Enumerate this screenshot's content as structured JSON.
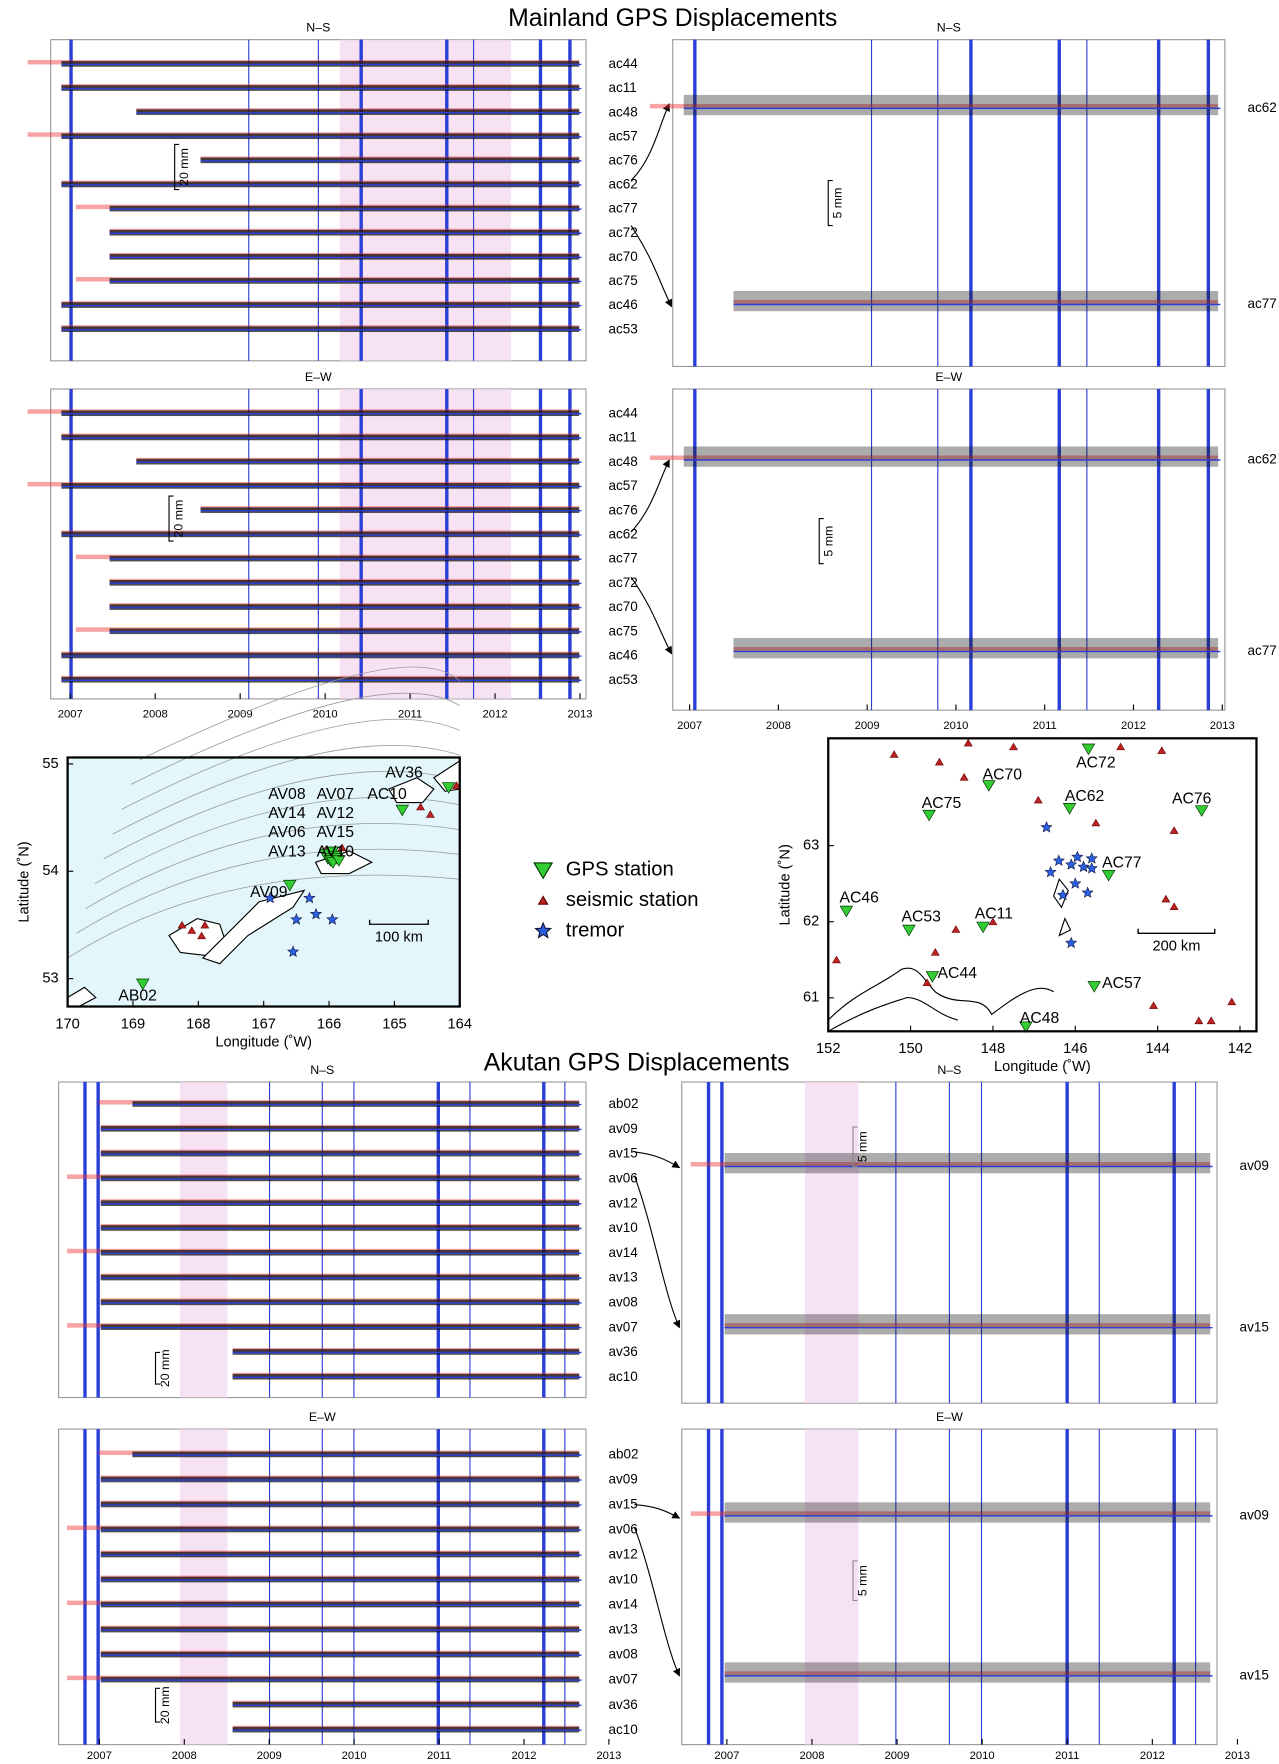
{
  "mainland": {
    "title": "Mainland GPS Displacements",
    "left": {
      "stations": [
        "ac44",
        "ac11",
        "ac48",
        "ac57",
        "ac76",
        "ac62",
        "ac77",
        "ac72",
        "ac70",
        "ac75",
        "ac46",
        "ac53"
      ],
      "panels": [
        {
          "title": "N–S",
          "scale": "20 mm"
        },
        {
          "title": "E–W",
          "scale": "20 mm"
        }
      ],
      "xlim": [
        2006.77,
        2013.07
      ]
    },
    "right": {
      "stations": [
        "ac62",
        "ac77"
      ],
      "panels": [
        {
          "title": "N–S",
          "scale": "5 mm"
        },
        {
          "title": "E–W",
          "scale": "5 mm"
        }
      ],
      "xlim": [
        2006.81,
        2013.03
      ]
    },
    "xticks": [
      2007,
      2008,
      2009,
      2010,
      2011,
      2012,
      2013
    ]
  },
  "maps": {
    "akutan": {
      "xlabel": "Longitude (˚W)",
      "ylabel": "Latitude (˚N)",
      "xlim": [
        170,
        164
      ],
      "ylim": [
        52.74,
        55.06
      ],
      "xticks": [
        170,
        169,
        168,
        167,
        166,
        165,
        164
      ],
      "yticks": [
        53,
        54,
        55
      ],
      "scalebar": "100 km",
      "gps": [
        {
          "label": "AV08",
          "lon": 166.05,
          "lat": 54.16
        },
        {
          "label": "AV07",
          "lon": 165.95,
          "lat": 54.18
        },
        {
          "label": "AV14",
          "lon": 166.02,
          "lat": 54.12
        },
        {
          "label": "AV12",
          "lon": 165.92,
          "lat": 54.14
        },
        {
          "label": "AV06",
          "lon": 165.98,
          "lat": 54.1
        },
        {
          "label": "AV15",
          "lon": 165.88,
          "lat": 54.12
        },
        {
          "label": "AV13",
          "lon": 165.94,
          "lat": 54.08
        },
        {
          "label": "AV10",
          "lon": 165.85,
          "lat": 54.1
        },
        {
          "label": "AV09",
          "lon": 166.6,
          "lat": 53.87
        },
        {
          "label": "AB02",
          "lon": 168.85,
          "lat": 52.95
        },
        {
          "label": "AC10",
          "lon": 164.88,
          "lat": 54.57
        },
        {
          "label": "AV36",
          "lon": 164.17,
          "lat": 54.78
        }
      ],
      "seismic": [
        {
          "lon": 168.1,
          "lat": 53.45
        },
        {
          "lon": 167.9,
          "lat": 53.5
        },
        {
          "lon": 168.25,
          "lat": 53.5
        },
        {
          "lon": 167.95,
          "lat": 53.4
        },
        {
          "lon": 166.05,
          "lat": 54.2
        },
        {
          "lon": 164.6,
          "lat": 54.6
        },
        {
          "lon": 164.45,
          "lat": 54.53
        },
        {
          "lon": 164.05,
          "lat": 54.8
        },
        {
          "lon": 165.8,
          "lat": 54.22
        }
      ],
      "tremor": [
        {
          "lon": 166.9,
          "lat": 53.75
        },
        {
          "lon": 166.5,
          "lat": 53.55
        },
        {
          "lon": 166.3,
          "lat": 53.75
        },
        {
          "lon": 166.2,
          "lat": 53.6
        },
        {
          "lon": 166.55,
          "lat": 53.25
        },
        {
          "lon": 165.95,
          "lat": 53.55
        }
      ]
    },
    "legend": [
      "GPS station",
      "seismic station",
      "tremor"
    ],
    "mainland": {
      "xlabel": "Longitude (˚W)",
      "ylabel": "Latitude (˚N)",
      "xlim": [
        152,
        141.6
      ],
      "ylim": [
        60.56,
        64.41
      ],
      "xticks": [
        152,
        150,
        148,
        146,
        144,
        142
      ],
      "yticks": [
        61,
        62,
        63
      ],
      "scalebar": "200 km",
      "gps": [
        {
          "label": "AC72",
          "lon": 145.68,
          "lat": 64.27
        },
        {
          "label": "AC70",
          "lon": 148.1,
          "lat": 63.79
        },
        {
          "label": "AC62",
          "lon": 146.14,
          "lat": 63.49
        },
        {
          "label": "AC76",
          "lon": 142.93,
          "lat": 63.46
        },
        {
          "label": "AC75",
          "lon": 149.55,
          "lat": 63.4
        },
        {
          "label": "AC77",
          "lon": 145.19,
          "lat": 62.61
        },
        {
          "label": "AC46",
          "lon": 151.56,
          "lat": 62.14
        },
        {
          "label": "AC53",
          "lon": 150.04,
          "lat": 61.89
        },
        {
          "label": "AC11",
          "lon": 148.24,
          "lat": 61.93
        },
        {
          "label": "AC44",
          "lon": 149.47,
          "lat": 61.28
        },
        {
          "label": "AC57",
          "lon": 145.54,
          "lat": 61.15
        },
        {
          "label": "AC48",
          "lon": 147.2,
          "lat": 60.62
        }
      ],
      "seismic": [
        {
          "lon": 150.4,
          "lat": 64.2
        },
        {
          "lon": 148.6,
          "lat": 64.35
        },
        {
          "lon": 147.5,
          "lat": 64.3
        },
        {
          "lon": 144.9,
          "lat": 64.3
        },
        {
          "lon": 143.9,
          "lat": 64.25
        },
        {
          "lon": 149.3,
          "lat": 64.1
        },
        {
          "lon": 148.7,
          "lat": 63.9
        },
        {
          "lon": 146.9,
          "lat": 63.6
        },
        {
          "lon": 145.5,
          "lat": 63.3
        },
        {
          "lon": 143.6,
          "lat": 63.2
        },
        {
          "lon": 148.0,
          "lat": 62.0
        },
        {
          "lon": 148.9,
          "lat": 61.9
        },
        {
          "lon": 143.8,
          "lat": 62.3
        },
        {
          "lon": 143.6,
          "lat": 62.2
        },
        {
          "lon": 151.8,
          "lat": 61.5
        },
        {
          "lon": 149.4,
          "lat": 61.6
        },
        {
          "lon": 149.6,
          "lat": 61.2
        },
        {
          "lon": 144.1,
          "lat": 60.9
        },
        {
          "lon": 143.0,
          "lat": 60.7
        },
        {
          "lon": 142.7,
          "lat": 60.7
        },
        {
          "lon": 142.2,
          "lat": 60.95
        }
      ],
      "tremor": [
        {
          "lon": 146.7,
          "lat": 63.24
        },
        {
          "lon": 146.4,
          "lat": 62.8
        },
        {
          "lon": 146.1,
          "lat": 62.75
        },
        {
          "lon": 145.8,
          "lat": 62.72
        },
        {
          "lon": 145.95,
          "lat": 62.85
        },
        {
          "lon": 146.6,
          "lat": 62.65
        },
        {
          "lon": 145.6,
          "lat": 62.7
        },
        {
          "lon": 146.0,
          "lat": 62.5
        },
        {
          "lon": 146.3,
          "lat": 62.35
        },
        {
          "lon": 145.7,
          "lat": 62.38
        },
        {
          "lon": 146.1,
          "lat": 61.72
        },
        {
          "lon": 145.6,
          "lat": 62.83
        }
      ]
    }
  },
  "akutan": {
    "title": "Akutan GPS Displacements",
    "left": {
      "stations": [
        "ab02",
        "av09",
        "av15",
        "av06",
        "av12",
        "av10",
        "av14",
        "av13",
        "av08",
        "av07",
        "av36",
        "ac10"
      ],
      "panels": [
        {
          "title": "N–S",
          "scale": "20 mm"
        },
        {
          "title": "E–W",
          "scale": "20 mm"
        }
      ],
      "xlim": [
        2006.52,
        2012.73
      ]
    },
    "right": {
      "stations": [
        "av09",
        "av15"
      ],
      "panels": [
        {
          "title": "N–S",
          "scale": "5 mm"
        },
        {
          "title": "E–W",
          "scale": "5 mm"
        }
      ],
      "xlim": [
        2006.47,
        2012.76
      ]
    },
    "xticks": [
      2007,
      2008,
      2009,
      2010,
      2011,
      2012,
      2013
    ]
  }
}
